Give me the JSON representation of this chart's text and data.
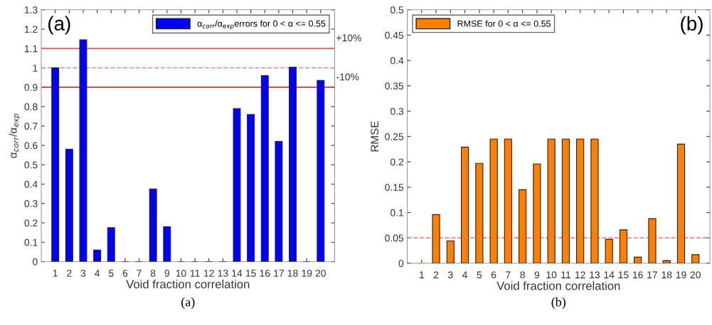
{
  "chart_data": [
    {
      "type": "bar",
      "categories": [
        "1",
        "2",
        "3",
        "4",
        "5",
        "6",
        "7",
        "8",
        "9",
        "10",
        "11",
        "12",
        "13",
        "14",
        "15",
        "16",
        "17",
        "18",
        "19",
        "20"
      ],
      "series": [
        {
          "name": "α$_{corr}$/α$_{exp}$errors for 0 < α <= 0.55",
          "color": "#0000ff",
          "values": [
            1.0,
            0.58,
            1.145,
            0.06,
            0.175,
            0,
            0,
            0.375,
            0.18,
            0,
            0,
            0,
            0,
            0.79,
            0.76,
            0.96,
            0.62,
            1.003,
            0,
            0.935
          ]
        }
      ],
      "xlabel": "Void fraction correlation",
      "ylabel": "α$_{corr}$/α$_{exp}$",
      "ylim": [
        0,
        1.3
      ],
      "yticks": [
        0,
        0.1,
        0.2,
        0.3,
        0.4,
        0.5,
        0.6,
        0.7,
        0.8,
        0.9,
        1,
        1.1,
        1.2,
        1.3
      ],
      "ref_lines": [
        {
          "axis": "y",
          "value": 1.1,
          "color": "#e85050",
          "line_style": "solid"
        },
        {
          "axis": "y",
          "value": 1.0,
          "color": "#f09090",
          "line_style": "dashed"
        },
        {
          "axis": "y",
          "value": 0.9,
          "color": "#e03030",
          "line_style": "solid"
        }
      ],
      "legend": "top right",
      "grid": false,
      "annotations": [
        "(a)",
        "(a)",
        "+10%",
        "-10%"
      ]
    },
    {
      "type": "bar",
      "categories": [
        "1",
        "2",
        "3",
        "4",
        "5",
        "6",
        "7",
        "8",
        "9",
        "10",
        "11",
        "12",
        "13",
        "14",
        "15",
        "16",
        "17",
        "18",
        "19",
        "20"
      ],
      "series": [
        {
          "name": "RMSE for 0 < α <= 0.55",
          "color": "#ff8000",
          "values": [
            0,
            0.096,
            0.044,
            0.229,
            0.197,
            0.245,
            0.245,
            0.145,
            0.196,
            0.245,
            0.245,
            0.245,
            0.245,
            0.047,
            0.066,
            0.012,
            0.088,
            0.005,
            0.235,
            0.017
          ]
        }
      ],
      "xlabel": "Void fraction correlation",
      "ylabel": "RMSE",
      "ylim": [
        0,
        0.5
      ],
      "yticks": [
        0,
        0.05,
        0.1,
        0.15,
        0.2,
        0.25,
        0.3,
        0.35,
        0.4,
        0.45,
        0.5
      ],
      "ref_lines": [
        {
          "axis": "y",
          "value": 0.05,
          "color": "#f07070",
          "line_style": "dashed"
        }
      ],
      "legend": "top left",
      "grid": false,
      "annotations": [
        "(b)",
        "(b)"
      ]
    }
  ]
}
